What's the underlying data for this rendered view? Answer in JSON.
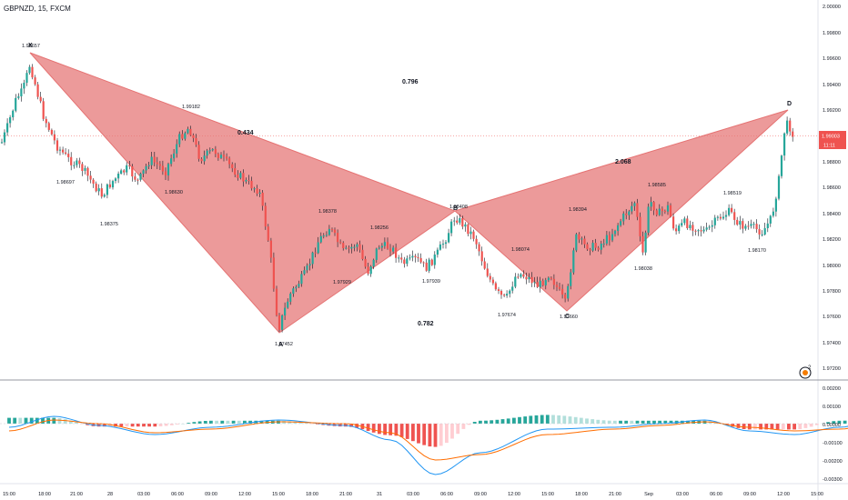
{
  "header": {
    "title": "GBPNZD, 15, FXCM"
  },
  "price_axis": {
    "ticks": [
      "2.00000",
      "1.99800",
      "1.99600",
      "1.99400",
      "1.99200",
      "1.99000",
      "1.98800",
      "1.98600",
      "1.98400",
      "1.98200",
      "1.98000",
      "1.97800",
      "1.97600",
      "1.97400",
      "1.97200"
    ],
    "current_price": "1.99003",
    "countdown": "11:11"
  },
  "macd_axis": {
    "ticks": [
      "0.00200",
      "0.00100",
      "0.00000",
      "-0.00100",
      "-0.00200",
      "-0.00300"
    ]
  },
  "time_axis": {
    "labels": [
      "15:00",
      "18:00",
      "21:00",
      "28",
      "03:00",
      "06:00",
      "09:00",
      "12:00",
      "15:00",
      "18:00",
      "21:00",
      "31",
      "03:00",
      "06:00",
      "09:00",
      "12:00",
      "15:00",
      "18:00",
      "21:00",
      "Sep",
      "03:00",
      "06:00",
      "09:00",
      "12:00",
      "15:00"
    ]
  },
  "pattern": {
    "point_labels": [
      "X",
      "A",
      "B",
      "C",
      "D"
    ],
    "ratios": [
      "0.434",
      "0.796",
      "0.782",
      "2.068"
    ]
  },
  "swing_labels": [
    "1.99657",
    "1.98697",
    "1.98375",
    "1.99182",
    "1.98630",
    "1.97452",
    "1.98378",
    "1.98256",
    "1.97929",
    "1.97939",
    "1.98408",
    "1.97674",
    "1.98074",
    "1.98394",
    "1.97660",
    "1.98038",
    "1.98585",
    "1.98519",
    "1.98170"
  ],
  "indicator_badge": "2",
  "colors": {
    "bull": "#26a69a",
    "bear": "#ef5350",
    "pattern_fill": "#e57373",
    "macd_line": "#2196f3",
    "signal_line": "#ff6d00"
  },
  "chart_data": [
    {
      "type": "candlestick",
      "title": "GBPNZD, 15, FXCM",
      "y_range": [
        1.9713,
        2.0008
      ],
      "swing_points": [
        {
          "label": "1.99657",
          "time_hours": 3.0,
          "price": 1.99657
        },
        {
          "label": "1.98697",
          "time_hours": 8.6,
          "price": 1.98697
        },
        {
          "label": "1.98375",
          "time_hours": 13.6,
          "price": 1.98375
        },
        {
          "label": "1.99182",
          "time_hours": 25.6,
          "price": 1.99182
        },
        {
          "label": "1.98630",
          "time_hours": 21.6,
          "price": 1.9863
        },
        {
          "label": "1.97452",
          "time_hours": 37.3,
          "price": 1.97452
        },
        {
          "label": "1.98378",
          "time_hours": 43.9,
          "price": 1.98378
        },
        {
          "label": "1.98256",
          "time_hours": 50.3,
          "price": 1.98256
        },
        {
          "label": "1.97929",
          "time_hours": 49.0,
          "price": 1.97929
        },
        {
          "label": "1.97939",
          "time_hours": 57.5,
          "price": 1.97939
        },
        {
          "label": "1.98408",
          "time_hours": 61.8,
          "price": 1.98408
        },
        {
          "label": "1.97674",
          "time_hours": 68.1,
          "price": 1.97674
        },
        {
          "label": "1.98074",
          "time_hours": 70.4,
          "price": 1.98074
        },
        {
          "label": "1.98394",
          "time_hours": 77.5,
          "price": 1.98394
        },
        {
          "label": "1.97660",
          "time_hours": 76.5,
          "price": 1.9766
        },
        {
          "label": "1.98038",
          "time_hours": 87.0,
          "price": 1.98038
        },
        {
          "label": "1.98585",
          "time_hours": 88.3,
          "price": 1.98585
        },
        {
          "label": "1.98519",
          "time_hours": 98.6,
          "price": 1.98519
        },
        {
          "label": "1.98170",
          "time_hours": 101.7,
          "price": 1.9817
        }
      ],
      "harmonic_pattern": {
        "points": [
          {
            "name": "X",
            "time_hours": 3.0,
            "price": 1.99657
          },
          {
            "name": "A",
            "time_hours": 37.3,
            "price": 1.97452
          },
          {
            "name": "B",
            "time_hours": 61.8,
            "price": 1.98408
          },
          {
            "name": "C",
            "time_hours": 76.5,
            "price": 1.9766
          },
          {
            "name": "D",
            "time_hours": 106.9,
            "price": 1.9922
          }
        ],
        "ratios": {
          "XB": 0.434,
          "AC": 0.796,
          "XD": 0.782,
          "BD": 2.068
        }
      },
      "last_price": 1.99003
    },
    {
      "type": "line",
      "title": "",
      "y_range": [
        -0.0035,
        0.0023
      ],
      "series": [
        {
          "x": [
            0,
            4,
            8,
            13,
            18,
            24,
            30,
            34,
            38,
            42,
            48,
            54,
            58,
            62,
            66,
            70,
            74,
            78,
            82,
            86,
            90,
            94,
            98,
            102,
            105,
            107
          ],
          "values": [
            -0.0002,
            0.0004,
            -0.0001,
            -0.0006,
            -0.0002,
            0.0002,
            -0.0001,
            -0.0009,
            -0.0028,
            -0.0016,
            -0.0003,
            -0.0002,
            0.0,
            0.0002,
            -0.0004,
            -0.0006,
            -0.0002,
            0.0003,
            0.001,
            0.0006,
            0.0001,
            -0.0001,
            0.0002,
            -0.0001,
            0.0006,
            0.0017
          ]
        },
        {
          "x": [
            0,
            4,
            8,
            13,
            18,
            24,
            30,
            34,
            38,
            42,
            48,
            54,
            58,
            62,
            66,
            70,
            74,
            78,
            82,
            86,
            90,
            94,
            98,
            102,
            105,
            107
          ],
          "values": [
            -0.0004,
            0.0002,
            0.0,
            -0.0005,
            -0.0003,
            0.0001,
            0.0,
            -0.0005,
            -0.002,
            -0.0017,
            -0.0006,
            -0.0003,
            -0.0001,
            0.0001,
            -0.0002,
            -0.0004,
            -0.0003,
            0.0001,
            0.0007,
            0.0006,
            0.0003,
            0.0,
            0.0001,
            0.0,
            0.0003,
            0.001
          ]
        }
      ]
    }
  ]
}
